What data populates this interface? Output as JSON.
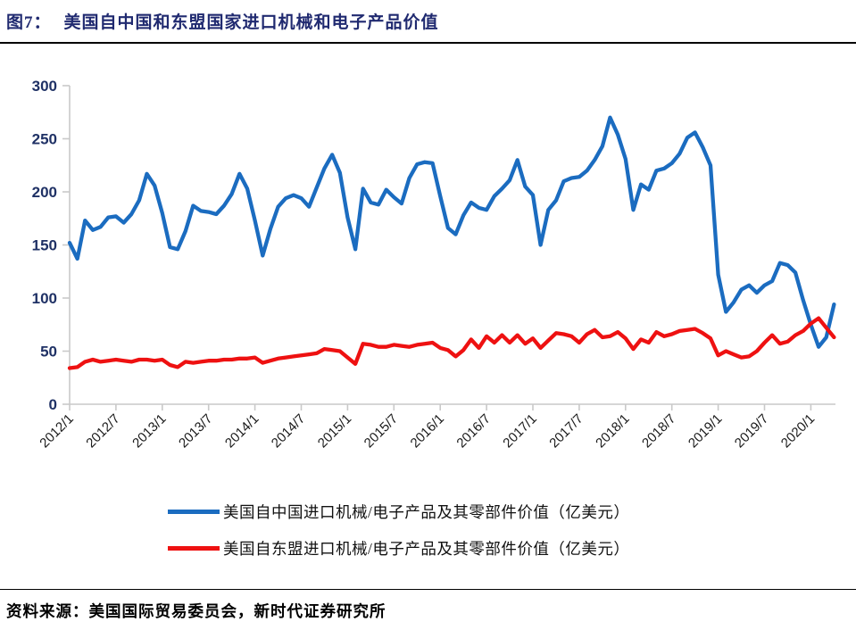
{
  "header": {
    "tag": "图7：",
    "title": "美国自中国和东盟国家进口机械和电子产品价值"
  },
  "source": {
    "text": "资料来源：美国国际贸易委员会，新时代证券研究所"
  },
  "chart_data": {
    "type": "line",
    "title": "美国自中国和东盟国家进口机械和电子产品价值",
    "x_frequency": "monthly",
    "x_start": "2012/1",
    "x_end": "2020/4",
    "x_tick_labels": [
      "2012/1",
      "2012/7",
      "2013/1",
      "2013/7",
      "2014/1",
      "2014/7",
      "2015/1",
      "2015/7",
      "2016/1",
      "2016/7",
      "2017/1",
      "2017/7",
      "2018/1",
      "2018/7",
      "2019/1",
      "2019/7",
      "2020/1"
    ],
    "y_ticks": [
      0,
      50,
      100,
      150,
      200,
      250,
      300
    ],
    "ylim": [
      0,
      300
    ],
    "grid": false,
    "legend_position": "bottom",
    "series": [
      {
        "name": "美国自中国进口机械/电子产品及其零部件价值（亿美元）",
        "color": "#1b6cc0",
        "values": [
          152,
          137,
          173,
          164,
          167,
          176,
          177,
          171,
          179,
          192,
          217,
          206,
          180,
          148,
          146,
          163,
          187,
          182,
          181,
          179,
          187,
          198,
          217,
          203,
          173,
          140,
          165,
          186,
          194,
          197,
          194,
          186,
          204,
          222,
          235,
          218,
          176,
          146,
          203,
          190,
          188,
          202,
          195,
          189,
          213,
          226,
          228,
          227,
          196,
          166,
          160,
          178,
          190,
          185,
          183,
          196,
          203,
          211,
          230,
          205,
          197,
          150,
          183,
          192,
          210,
          213,
          214,
          220,
          230,
          243,
          270,
          254,
          231,
          183,
          207,
          202,
          220,
          222,
          227,
          236,
          251,
          256,
          242,
          225,
          122,
          87,
          96,
          108,
          112,
          105,
          112,
          116,
          133,
          131,
          124,
          98,
          75,
          54,
          63,
          94
        ]
      },
      {
        "name": "美国自东盟进口机械/电子产品及其零部件价值（亿美元）",
        "color": "#ee1111",
        "values": [
          34,
          35,
          40,
          42,
          40,
          41,
          42,
          41,
          40,
          42,
          42,
          41,
          42,
          37,
          35,
          40,
          39,
          40,
          41,
          41,
          42,
          42,
          43,
          43,
          44,
          39,
          41,
          43,
          44,
          45,
          46,
          47,
          48,
          52,
          51,
          50,
          44,
          38,
          57,
          56,
          54,
          54,
          56,
          55,
          54,
          56,
          57,
          58,
          53,
          51,
          45,
          51,
          61,
          53,
          64,
          58,
          65,
          58,
          65,
          57,
          62,
          53,
          60,
          67,
          66,
          64,
          58,
          66,
          70,
          63,
          64,
          68,
          62,
          52,
          61,
          58,
          68,
          64,
          66,
          69,
          70,
          71,
          67,
          62,
          46,
          50,
          47,
          44,
          45,
          50,
          58,
          65,
          57,
          59,
          65,
          69,
          76,
          81,
          72,
          63
        ]
      }
    ]
  }
}
